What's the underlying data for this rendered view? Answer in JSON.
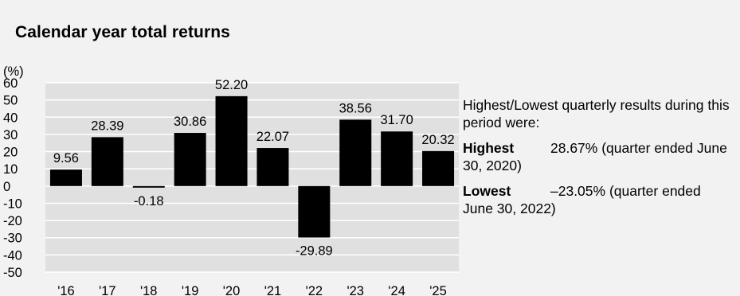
{
  "title": "Calendar year total returns",
  "chart_data": {
    "type": "bar",
    "ylabel": "(%)",
    "ylim": [
      -50,
      60
    ],
    "yticks": [
      60,
      50,
      40,
      30,
      20,
      10,
      0,
      -10,
      -20,
      -30,
      -40,
      -50
    ],
    "categories": [
      "'16",
      "'17",
      "'18",
      "'19",
      "'20",
      "'21",
      "'22",
      "'23",
      "'24",
      "'25"
    ],
    "values": [
      9.56,
      28.39,
      -0.18,
      30.86,
      52.2,
      22.07,
      -29.89,
      38.56,
      31.7,
      20.32
    ],
    "value_labels": [
      "9.56",
      "28.39",
      "-0.18",
      "30.86",
      "52.20",
      "22.07",
      "-29.89",
      "38.56",
      "31.70",
      "20.32"
    ],
    "grid": true,
    "bar_color": "#000000",
    "plot_bg": "#e0e0e0",
    "grid_color": "#ffffff"
  },
  "note": {
    "intro": "Highest/Lowest quarterly results during this period were:",
    "highest_label": "Highest",
    "highest_value": "28.67% (quarter ended June 30, 2020)",
    "lowest_label": "Lowest",
    "lowest_value": "–23.05% (quarter ended June 30, 2022)"
  }
}
